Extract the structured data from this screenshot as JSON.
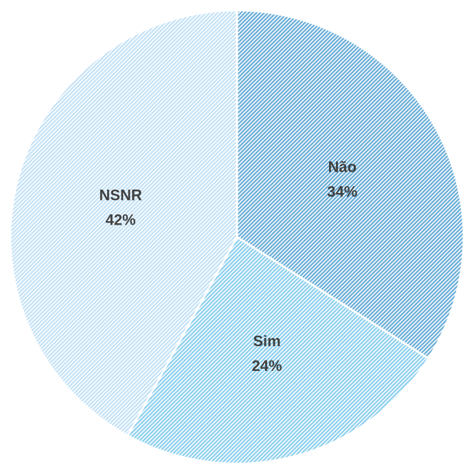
{
  "chart_data": {
    "type": "pie",
    "categories": [
      "Não",
      "Sim",
      "NSNR"
    ],
    "values": [
      34,
      24,
      42
    ],
    "value_labels": [
      "34%",
      "24%",
      "42%"
    ],
    "colors": [
      "#6aaed8",
      "#8dd0ee",
      "#c4e2f6"
    ]
  }
}
